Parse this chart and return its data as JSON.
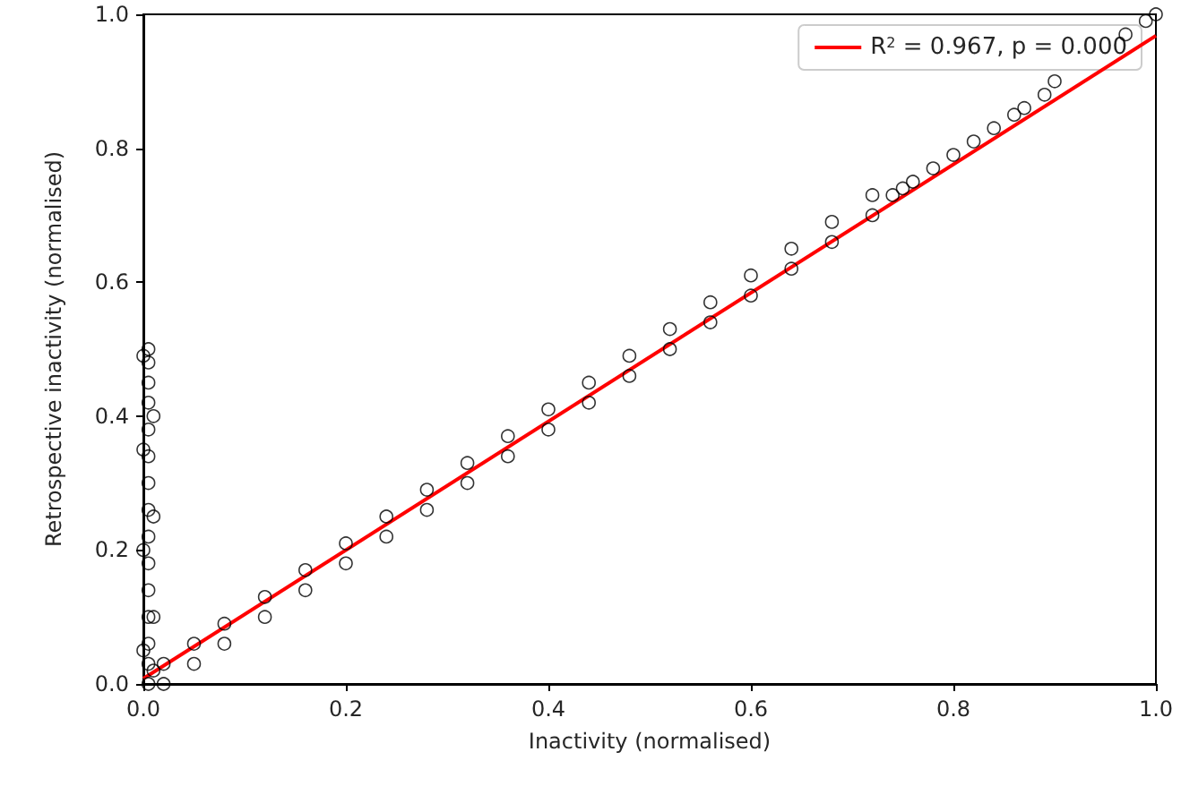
{
  "chart_data": {
    "type": "scatter",
    "xlabel": "Inactivity (normalised)",
    "ylabel": "Retrospective inactivity (normalised)",
    "xlim": [
      0,
      1
    ],
    "ylim": [
      0,
      1
    ],
    "xticks": [
      {
        "value": 0,
        "label": "0.0"
      },
      {
        "value": 0.2,
        "label": "0.2"
      },
      {
        "value": 0.4,
        "label": "0.4"
      },
      {
        "value": 0.6,
        "label": "0.6"
      },
      {
        "value": 0.8,
        "label": "0.8"
      },
      {
        "value": 1,
        "label": "1.0"
      }
    ],
    "yticks": [
      {
        "value": 0,
        "label": "0.0"
      },
      {
        "value": 0.2,
        "label": "0.2"
      },
      {
        "value": 0.4,
        "label": "0.4"
      },
      {
        "value": 0.6,
        "label": "0.6"
      },
      {
        "value": 0.8,
        "label": "0.8"
      },
      {
        "value": 1,
        "label": "1.0"
      }
    ],
    "grid": false,
    "legend": "top right",
    "marker": "circle",
    "series": [
      {
        "color": "#000000",
        "x": [
          0.005,
          0.005,
          0.005,
          0.005,
          0.005,
          0.005,
          0.005,
          0.005,
          0.005,
          0.005,
          0.005,
          0.005,
          0.005,
          0.005,
          0.005,
          0,
          0,
          0,
          0,
          0.01,
          0.01,
          0.01,
          0.01,
          0.02,
          0.02,
          0.05,
          0.05,
          0.08,
          0.08,
          0.12,
          0.12,
          0.16,
          0.16,
          0.2,
          0.2,
          0.24,
          0.24,
          0.28,
          0.28,
          0.32,
          0.32,
          0.36,
          0.36,
          0.4,
          0.4,
          0.44,
          0.44,
          0.48,
          0.48,
          0.52,
          0.52,
          0.56,
          0.56,
          0.6,
          0.6,
          0.64,
          0.64,
          0.68,
          0.68,
          0.72,
          0.72,
          0.74,
          0.75,
          0.76,
          0.78,
          0.8,
          0.82,
          0.84,
          0.86,
          0.87,
          0.89,
          0.9,
          0.97,
          0.99,
          1
        ],
        "values": [
          0.5,
          0.48,
          0.45,
          0.42,
          0.38,
          0.34,
          0.3,
          0.26,
          0.22,
          0.18,
          0.14,
          0.1,
          0.06,
          0.03,
          0,
          0.49,
          0.35,
          0.2,
          0.05,
          0.4,
          0.25,
          0.1,
          0.02,
          0.03,
          0,
          0.06,
          0.03,
          0.09,
          0.06,
          0.13,
          0.1,
          0.17,
          0.14,
          0.21,
          0.18,
          0.25,
          0.22,
          0.29,
          0.26,
          0.33,
          0.3,
          0.37,
          0.34,
          0.41,
          0.38,
          0.45,
          0.42,
          0.49,
          0.46,
          0.53,
          0.5,
          0.57,
          0.54,
          0.61,
          0.58,
          0.65,
          0.62,
          0.69,
          0.66,
          0.73,
          0.7,
          0.73,
          0.74,
          0.75,
          0.77,
          0.79,
          0.81,
          0.83,
          0.85,
          0.86,
          0.88,
          0.9,
          0.97,
          0.99,
          1
        ]
      },
      {
        "type": "line",
        "name": "R$^{2}$ = 0.967, p = 0.000",
        "color": "#ff0000",
        "marker": "none",
        "x": [
          0,
          1
        ],
        "values": [
          0.008,
          0.968
        ]
      }
    ]
  }
}
